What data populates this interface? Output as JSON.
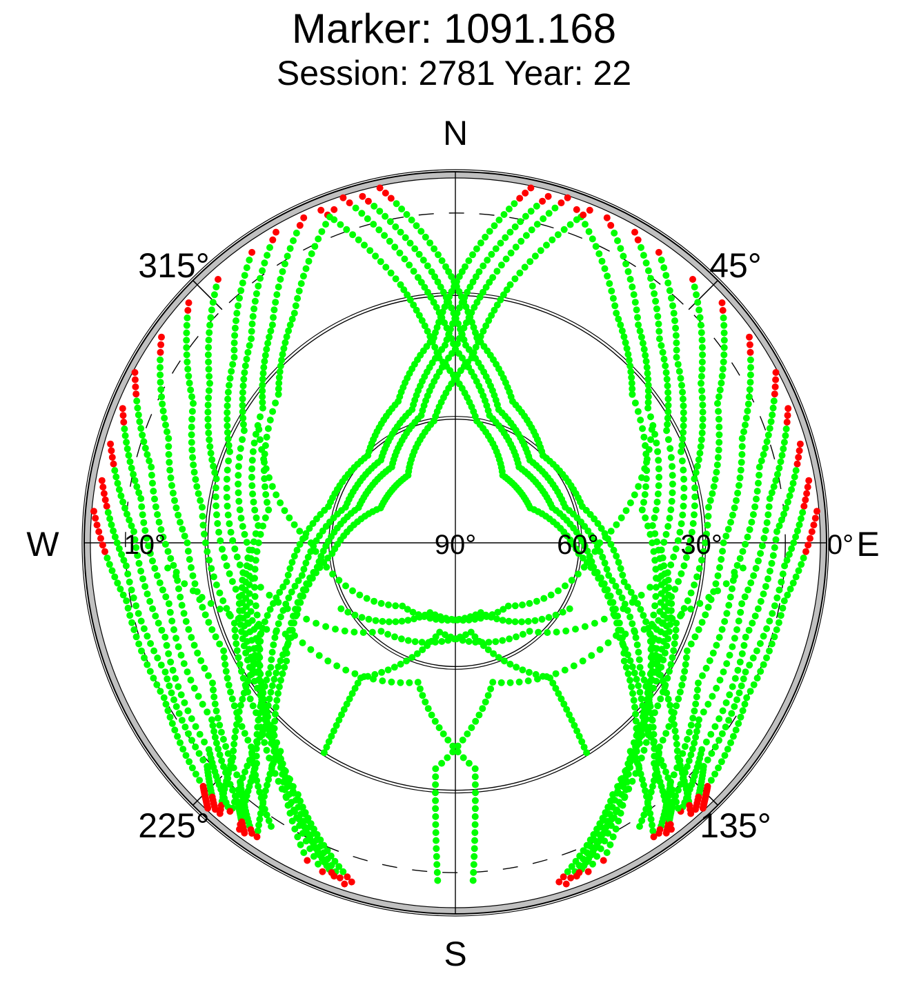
{
  "title": "Marker: 1091.168",
  "subtitle": "Session: 2781 Year: 22",
  "colors": {
    "track": "#00ff00",
    "low_elevation": "#ff0000",
    "horizon_band": "#c0c0c0",
    "axis": "#000000"
  },
  "chart_data": {
    "type": "scatter",
    "projection": "polar sky plot (azimuth clockwise from north, elevation from horizon to zenith)",
    "azimuth_range": [
      0,
      360
    ],
    "elevation_range": [
      0,
      90
    ],
    "compass": {
      "north": "N",
      "east": "E",
      "south": "S",
      "west": "W"
    },
    "azimuth_ticks": [
      {
        "azimuth": 45,
        "label": "45°"
      },
      {
        "azimuth": 135,
        "label": "135°"
      },
      {
        "azimuth": 225,
        "label": "225°"
      },
      {
        "azimuth": 315,
        "label": "315°"
      }
    ],
    "elevation_ticks": [
      {
        "elevation": 0,
        "label": "0°"
      },
      {
        "elevation": 30,
        "label": "30°"
      },
      {
        "elevation": 60,
        "label": "60°"
      },
      {
        "elevation": 90,
        "label": "90°"
      },
      {
        "elevation": 10,
        "label": "10°"
      }
    ],
    "elevation_rings": [
      30,
      60
    ],
    "dashed_elevation_ring": 10,
    "mask_ring": 1.5,
    "low_elevation_threshold": 5,
    "series": [
      {
        "color_key": "track",
        "tracks": [
          [
            [
              20,
              4
            ],
            [
              35,
              22
            ],
            [
              50,
              34
            ],
            [
              80,
              44
            ],
            [
              115,
              38
            ],
            [
              140,
              24
            ],
            [
              155,
              5
            ]
          ],
          [
            [
              25,
              3
            ],
            [
              40,
              21
            ],
            [
              55,
              33
            ],
            [
              85,
              42
            ],
            [
              118,
              36
            ],
            [
              142,
              22
            ],
            [
              158,
              4
            ]
          ],
          [
            [
              30,
              3
            ],
            [
              45,
              20
            ],
            [
              62,
              32
            ],
            [
              92,
              40
            ],
            [
              122,
              34
            ],
            [
              145,
              20
            ],
            [
              160,
              4
            ]
          ],
          [
            [
              35,
              4
            ],
            [
              50,
              20
            ],
            [
              68,
              31
            ],
            [
              98,
              38
            ],
            [
              125,
              32
            ],
            [
              148,
              18
            ],
            [
              162,
              3
            ]
          ],
          [
            [
              42,
              4
            ],
            [
              57,
              19
            ],
            [
              75,
              30
            ],
            [
              104,
              36
            ],
            [
              128,
              30
            ],
            [
              150,
              16
            ],
            [
              163,
              4
            ]
          ],
          [
            [
              48,
              3
            ],
            [
              62,
              18
            ],
            [
              82,
              28
            ],
            [
              110,
              33
            ],
            [
              132,
              26
            ],
            [
              152,
              12
            ],
            [
              160,
              4
            ]
          ],
          [
            [
              55,
              3
            ],
            [
              70,
              16
            ],
            [
              90,
              25
            ],
            [
              115,
              28
            ],
            [
              135,
              20
            ],
            [
              147,
              8
            ]
          ],
          [
            [
              62,
              2
            ],
            [
              76,
              14
            ],
            [
              96,
              22
            ],
            [
              120,
              22
            ],
            [
              138,
              12
            ],
            [
              145,
              4
            ]
          ],
          [
            [
              68,
              3
            ],
            [
              82,
              13
            ],
            [
              102,
              19
            ],
            [
              126,
              17
            ],
            [
              140,
              8
            ],
            [
              144,
              3
            ]
          ],
          [
            [
              74,
              3
            ],
            [
              88,
              12
            ],
            [
              108,
              16
            ],
            [
              130,
              12
            ],
            [
              140,
              5
            ]
          ],
          [
            [
              80,
              3
            ],
            [
              94,
              10
            ],
            [
              114,
              13
            ],
            [
              132,
              9
            ],
            [
              138,
              3
            ]
          ],
          [
            [
              85,
              2
            ],
            [
              100,
              9
            ],
            [
              118,
              10
            ],
            [
              134,
              5
            ],
            [
              137,
              2
            ]
          ],
          [
            [
              18,
              2
            ],
            [
              8,
              25
            ],
            [
              0,
              43
            ],
            [
              345,
              58
            ],
            [
              320,
              66
            ],
            [
              290,
              65
            ],
            [
              260,
              56
            ],
            [
              235,
              40
            ],
            [
              220,
              22
            ],
            [
              214,
              4
            ]
          ],
          [
            [
              15,
              3
            ],
            [
              5,
              24
            ],
            [
              357,
              42
            ],
            [
              342,
              56
            ],
            [
              318,
              63
            ],
            [
              288,
              62
            ],
            [
              258,
              52
            ],
            [
              236,
              36
            ],
            [
              222,
              18
            ],
            [
              217,
              3
            ]
          ],
          [
            [
              12,
              2
            ],
            [
              2,
              23
            ],
            [
              354,
              40
            ],
            [
              338,
              53
            ],
            [
              315,
              60
            ],
            [
              286,
              58
            ],
            [
              257,
              48
            ],
            [
              238,
              32
            ],
            [
              226,
              15
            ],
            [
              221,
              3
            ]
          ],
          [
            [
              22,
              3
            ],
            [
              12,
              26
            ],
            [
              5,
              45
            ],
            [
              350,
              60
            ],
            [
              325,
              70
            ],
            [
              295,
              70
            ],
            [
              265,
              60
            ],
            [
              240,
              44
            ],
            [
              226,
              26
            ],
            [
              220,
              6
            ]
          ],
          [
            [
              342,
              2
            ],
            [
              352,
              25
            ],
            [
              0,
              43
            ],
            [
              15,
              58
            ],
            [
              40,
              66
            ],
            [
              70,
              65
            ],
            [
              100,
              56
            ],
            [
              125,
              40
            ],
            [
              140,
              22
            ],
            [
              146,
              4
            ]
          ],
          [
            [
              345,
              3
            ],
            [
              355,
              24
            ],
            [
              3,
              42
            ],
            [
              18,
              56
            ],
            [
              42,
              63
            ],
            [
              72,
              62
            ],
            [
              102,
              52
            ],
            [
              124,
              36
            ],
            [
              138,
              18
            ],
            [
              143,
              3
            ]
          ],
          [
            [
              348,
              2
            ],
            [
              358,
              23
            ],
            [
              6,
              40
            ],
            [
              22,
              53
            ],
            [
              45,
              60
            ],
            [
              74,
              58
            ],
            [
              103,
              48
            ],
            [
              122,
              32
            ],
            [
              134,
              15
            ],
            [
              139,
              3
            ]
          ],
          [
            [
              338,
              3
            ],
            [
              348,
              26
            ],
            [
              355,
              45
            ],
            [
              10,
              60
            ],
            [
              35,
              70
            ],
            [
              65,
              70
            ],
            [
              95,
              60
            ],
            [
              120,
              44
            ],
            [
              134,
              26
            ],
            [
              140,
              6
            ]
          ],
          [
            [
              340,
              4
            ],
            [
              325,
              22
            ],
            [
              310,
              34
            ],
            [
              280,
              44
            ],
            [
              245,
              38
            ],
            [
              220,
              24
            ],
            [
              205,
              5
            ]
          ],
          [
            [
              335,
              3
            ],
            [
              320,
              21
            ],
            [
              305,
              33
            ],
            [
              275,
              42
            ],
            [
              242,
              36
            ],
            [
              218,
              22
            ],
            [
              202,
              4
            ]
          ],
          [
            [
              330,
              3
            ],
            [
              315,
              20
            ],
            [
              298,
              32
            ],
            [
              268,
              40
            ],
            [
              238,
              34
            ],
            [
              215,
              20
            ],
            [
              200,
              4
            ]
          ],
          [
            [
              325,
              4
            ],
            [
              310,
              20
            ],
            [
              292,
              31
            ],
            [
              262,
              38
            ],
            [
              235,
              32
            ],
            [
              212,
              18
            ],
            [
              198,
              3
            ]
          ],
          [
            [
              318,
              4
            ],
            [
              303,
              19
            ],
            [
              285,
              30
            ],
            [
              256,
              36
            ],
            [
              232,
              30
            ],
            [
              210,
              16
            ],
            [
              197,
              4
            ]
          ],
          [
            [
              312,
              3
            ],
            [
              298,
              18
            ],
            [
              278,
              28
            ],
            [
              250,
              33
            ],
            [
              228,
              26
            ],
            [
              208,
              12
            ],
            [
              200,
              4
            ]
          ],
          [
            [
              305,
              3
            ],
            [
              290,
              16
            ],
            [
              270,
              25
            ],
            [
              245,
              28
            ],
            [
              225,
              20
            ],
            [
              213,
              8
            ]
          ],
          [
            [
              298,
              2
            ],
            [
              284,
              14
            ],
            [
              264,
              22
            ],
            [
              240,
              22
            ],
            [
              222,
              12
            ],
            [
              215,
              4
            ]
          ],
          [
            [
              292,
              3
            ],
            [
              278,
              13
            ],
            [
              258,
              19
            ],
            [
              234,
              17
            ],
            [
              220,
              8
            ],
            [
              216,
              3
            ]
          ],
          [
            [
              286,
              3
            ],
            [
              272,
              12
            ],
            [
              252,
              16
            ],
            [
              230,
              12
            ],
            [
              220,
              5
            ]
          ],
          [
            [
              280,
              3
            ],
            [
              266,
              10
            ],
            [
              246,
              13
            ],
            [
              228,
              9
            ],
            [
              222,
              3
            ]
          ],
          [
            [
              275,
              2
            ],
            [
              260,
              9
            ],
            [
              242,
              10
            ],
            [
              226,
              5
            ],
            [
              223,
              2
            ]
          ],
          [
            [
              60,
              35
            ],
            [
              90,
              55
            ],
            [
              140,
              70
            ],
            [
              200,
              72
            ],
            [
              240,
              58
            ]
          ],
          [
            [
              300,
              35
            ],
            [
              270,
              55
            ],
            [
              220,
              70
            ],
            [
              160,
              72
            ],
            [
              120,
              58
            ]
          ],
          [
            [
              100,
              40
            ],
            [
              140,
              62
            ],
            [
              190,
              68
            ],
            [
              215,
              50
            ],
            [
              212,
              30
            ]
          ],
          [
            [
              260,
              40
            ],
            [
              220,
              62
            ],
            [
              170,
              68
            ],
            [
              145,
              50
            ],
            [
              148,
              30
            ]
          ],
          [
            [
              95,
              20
            ],
            [
              120,
              45
            ],
            [
              165,
              55
            ],
            [
              185,
              35
            ],
            [
              183,
              8
            ]
          ],
          [
            [
              265,
              20
            ],
            [
              240,
              45
            ],
            [
              195,
              55
            ],
            [
              175,
              35
            ],
            [
              177,
              8
            ]
          ]
        ]
      }
    ]
  }
}
